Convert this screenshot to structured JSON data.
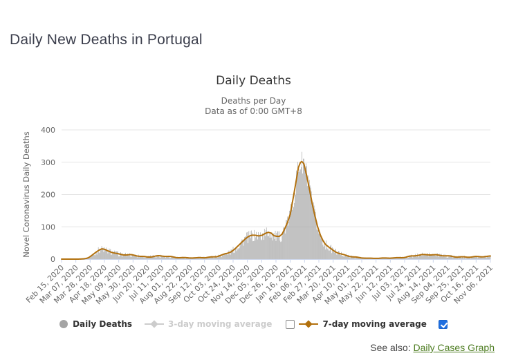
{
  "page": {
    "title": "Daily New Deaths in Portugal",
    "see_also_label": "See also:",
    "see_also_link": "Daily Cases Graph"
  },
  "chart_data": {
    "type": "bar",
    "title": "Daily Deaths",
    "subtitle_line1": "Deaths per Day",
    "subtitle_line2": "Data as of 0:00 GMT+8",
    "ylabel": "Novel Coronavirus Daily Deaths",
    "ylim": [
      0,
      400
    ],
    "yticks": [
      0,
      100,
      200,
      300,
      400
    ],
    "grid": true,
    "legend_position": "bottom",
    "x_first_date": "Feb 15, 2020",
    "x_last_date": "Nov 06, 2021",
    "x_tick_interval_days": 21,
    "total_days": 631,
    "x_tick_labels": [
      "Feb 15, 2020",
      "Mar 07, 2020",
      "Mar 28, 2020",
      "Apr 18, 2020",
      "May 09, 2020",
      "May 30, 2020",
      "Jun 20, 2020",
      "Jul 11, 2020",
      "Aug 01, 2020",
      "Aug 22, 2020",
      "Sep 12, 2020",
      "Oct 03, 2020",
      "Oct 24, 2020",
      "Nov 14, 2020",
      "Dec 05, 2020",
      "Dec 26, 2020",
      "Jan 16, 2021",
      "Feb 06, 2021",
      "Feb 27, 2021",
      "Mar 20, 2021",
      "Apr 10, 2021",
      "May 01, 2021",
      "May 22, 2021",
      "Jun 12, 2021",
      "Jul 03, 2021",
      "Jul 24, 2021",
      "Aug 14, 2021",
      "Sep 04, 2021",
      "Sep 25, 2021",
      "Oct 16, 2021",
      "Nov 06, 2021"
    ],
    "series": [
      {
        "name": "Daily Deaths",
        "type": "column",
        "color": "#a4a4a4",
        "visible": true
      },
      {
        "name": "3-day moving average",
        "type": "line",
        "color": "#cccccc",
        "visible": false
      },
      {
        "name": "7-day moving average",
        "type": "line",
        "color": "#b2700d",
        "visible": true,
        "points_day_value": [
          [
            0,
            0
          ],
          [
            24,
            0
          ],
          [
            28,
            0.3
          ],
          [
            32,
            1
          ],
          [
            36,
            2.5
          ],
          [
            40,
            5
          ],
          [
            44,
            10
          ],
          [
            48,
            17
          ],
          [
            52,
            24
          ],
          [
            56,
            29
          ],
          [
            59,
            31
          ],
          [
            63,
            29
          ],
          [
            67,
            26
          ],
          [
            71,
            24
          ],
          [
            75,
            21
          ],
          [
            80,
            18
          ],
          [
            85,
            15.5
          ],
          [
            90,
            14
          ],
          [
            96,
            13
          ],
          [
            102,
            12.5
          ],
          [
            108,
            11
          ],
          [
            114,
            9.5
          ],
          [
            120,
            8
          ],
          [
            126,
            7
          ],
          [
            132,
            8
          ],
          [
            138,
            9
          ],
          [
            144,
            9.5
          ],
          [
            150,
            9
          ],
          [
            156,
            8
          ],
          [
            162,
            7
          ],
          [
            168,
            6
          ],
          [
            174,
            5
          ],
          [
            180,
            4.5
          ],
          [
            186,
            4
          ],
          [
            192,
            3.5
          ],
          [
            198,
            3.5
          ],
          [
            204,
            4.5
          ],
          [
            210,
            5
          ],
          [
            216,
            6
          ],
          [
            222,
            7
          ],
          [
            228,
            8.5
          ],
          [
            231,
            10
          ],
          [
            237,
            13
          ],
          [
            243,
            17
          ],
          [
            249,
            23
          ],
          [
            255,
            32
          ],
          [
            260,
            42
          ],
          [
            265,
            54
          ],
          [
            270,
            64
          ],
          [
            275,
            70
          ],
          [
            280,
            73
          ],
          [
            285,
            74
          ],
          [
            290,
            72
          ],
          [
            295,
            73
          ],
          [
            300,
            80
          ],
          [
            304,
            84
          ],
          [
            308,
            82
          ],
          [
            312,
            73
          ],
          [
            316,
            70
          ],
          [
            320,
            70
          ],
          [
            324,
            78
          ],
          [
            328,
            95
          ],
          [
            332,
            113
          ],
          [
            336,
            138
          ],
          [
            340,
            185
          ],
          [
            344,
            235
          ],
          [
            348,
            285
          ],
          [
            351,
            300
          ],
          [
            353,
            302
          ],
          [
            356,
            295
          ],
          [
            360,
            260
          ],
          [
            364,
            220
          ],
          [
            368,
            175
          ],
          [
            372,
            135
          ],
          [
            376,
            100
          ],
          [
            380,
            75
          ],
          [
            384,
            58
          ],
          [
            388,
            45
          ],
          [
            393,
            36
          ],
          [
            398,
            29
          ],
          [
            403,
            23
          ],
          [
            408,
            18
          ],
          [
            413,
            14
          ],
          [
            418,
            11
          ],
          [
            424,
            8
          ],
          [
            430,
            6
          ],
          [
            436,
            5
          ],
          [
            443,
            4
          ],
          [
            450,
            3
          ],
          [
            458,
            2.5
          ],
          [
            466,
            2.5
          ],
          [
            474,
            3
          ],
          [
            482,
            3.5
          ],
          [
            490,
            4
          ],
          [
            498,
            5
          ],
          [
            506,
            6
          ],
          [
            512,
            8
          ],
          [
            518,
            10
          ],
          [
            524,
            12
          ],
          [
            530,
            13.5
          ],
          [
            537,
            14.5
          ],
          [
            544,
            14
          ],
          [
            551,
            12.5
          ],
          [
            558,
            11
          ],
          [
            565,
            9.5
          ],
          [
            572,
            8.5
          ],
          [
            580,
            7.5
          ],
          [
            588,
            7
          ],
          [
            596,
            6.5
          ],
          [
            604,
            6.5
          ],
          [
            612,
            7
          ],
          [
            620,
            8
          ],
          [
            625,
            8.5
          ],
          [
            630,
            9.5
          ]
        ]
      }
    ]
  },
  "legend": {
    "items": [
      {
        "label": "Daily Deaths",
        "marker": "circle",
        "color": "#a4a4a4",
        "text_color": "#333333",
        "checkbox": null
      },
      {
        "label": "3-day moving average",
        "marker": "line-diamond",
        "color": "#cccccc",
        "text_color": "#cccccc",
        "checkbox": "unchecked"
      },
      {
        "label": "7-day moving average",
        "marker": "line-diamond",
        "color": "#b2700d",
        "text_color": "#333333",
        "checkbox": "checked"
      }
    ]
  },
  "colors": {
    "grid": "#e6e6e6",
    "axis_line": "#ccd6eb",
    "tick_label": "#666666",
    "chart_title": "#333333",
    "subtitle": "#666666",
    "page_title": "#3b3e4c",
    "link_green": "#4d7c21",
    "checkbox_blue": "#1f6fe0"
  }
}
